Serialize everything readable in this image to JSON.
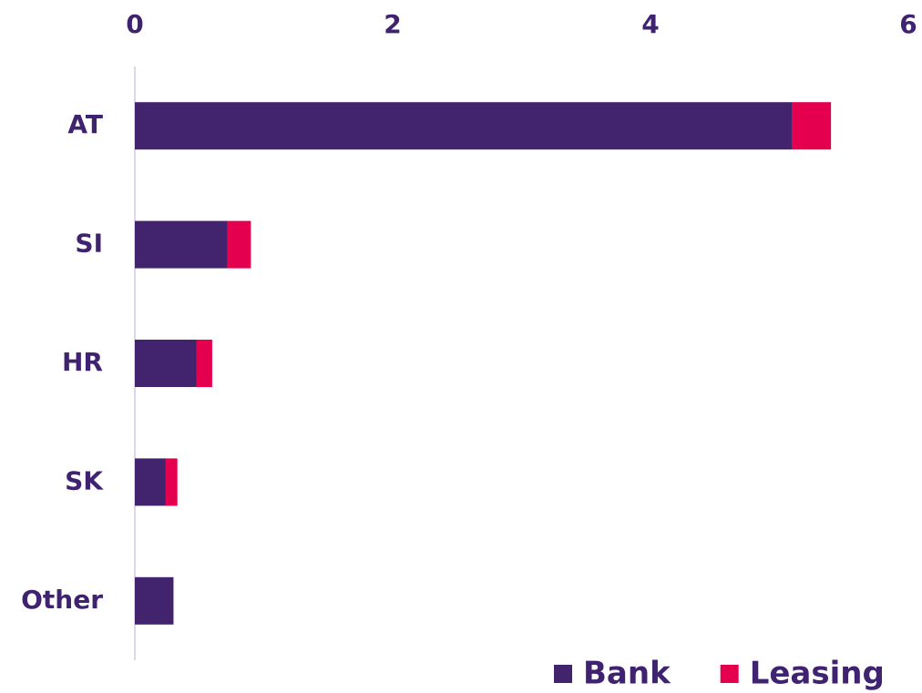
{
  "chart_data": {
    "type": "bar",
    "orientation": "horizontal",
    "stacked": true,
    "categories": [
      "AT",
      "SI",
      "HR",
      "SK",
      "Other"
    ],
    "series": [
      {
        "name": "Bank",
        "color": "#42246e",
        "values": [
          5.1,
          0.72,
          0.48,
          0.24,
          0.3
        ]
      },
      {
        "name": "Leasing",
        "color": "#e4004f",
        "values": [
          0.3,
          0.18,
          0.12,
          0.09,
          0
        ]
      }
    ],
    "xlim": [
      0,
      6
    ],
    "xticks": [
      0,
      2,
      4,
      6
    ],
    "legend": "bottom-right"
  }
}
